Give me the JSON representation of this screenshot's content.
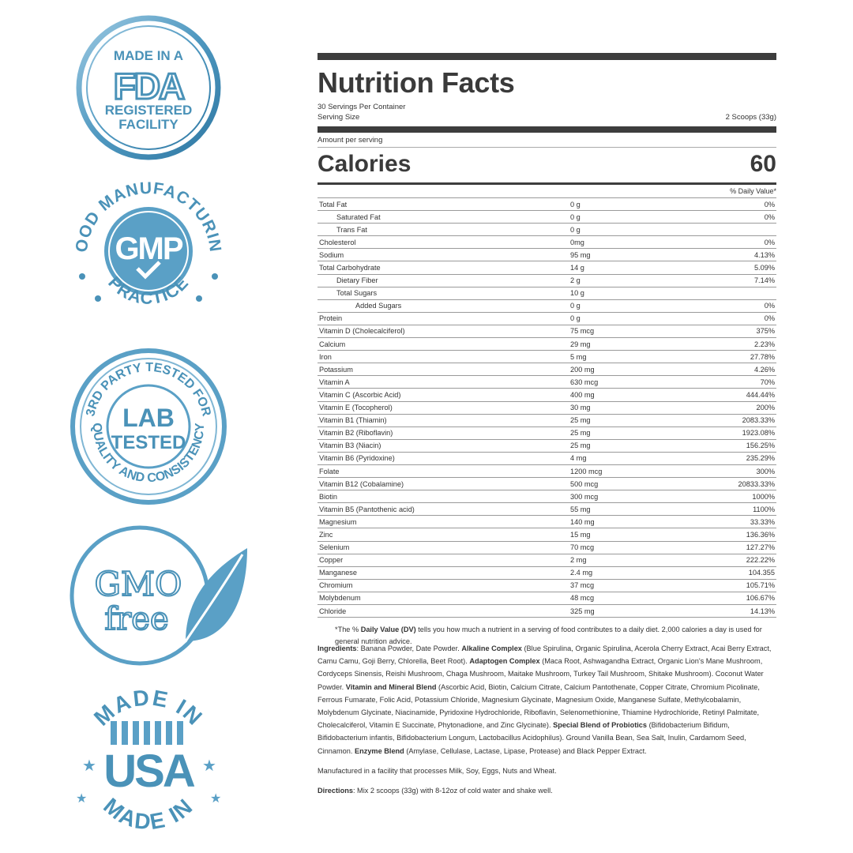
{
  "badges": {
    "fda": {
      "line1": "MADE IN A",
      "mark": "FDA",
      "line2": "REGISTERED",
      "line3": "FACILITY"
    },
    "gmp": {
      "top": "GOOD MANUFACTURING",
      "mark": "GMP",
      "bottom": "PRACTICE"
    },
    "lab": {
      "top": "3RD PARTY TESTED FOR",
      "mark1": "LAB",
      "mark2": "TESTED",
      "bottom": "QUALITY AND CONSISTENCY"
    },
    "gmo": {
      "mark1": "GMO",
      "mark2": "free"
    },
    "usa": {
      "top": "MADE IN",
      "mark": "USA",
      "bottom": "MADE IN"
    },
    "colors": {
      "blue": "#4a92b8",
      "light": "#7fb6d4"
    }
  },
  "label": {
    "title": "Nutrition Facts",
    "servings": "30 Servings Per Container",
    "serving_size_label": "Serving Size",
    "serving_size_value": "2 Scoops (33g)",
    "amount_per_serving": "Amount per serving",
    "calories_label": "Calories",
    "calories_value": "60",
    "dv_header": "% Daily Value*",
    "rows": [
      {
        "name": "Total Fat",
        "amount": "0 g",
        "dv": "0%",
        "indent": 0
      },
      {
        "name": "Saturated Fat",
        "amount": "0 g",
        "dv": "0%",
        "indent": 1
      },
      {
        "name": "Trans Fat",
        "amount": "0 g",
        "dv": "",
        "indent": 1
      },
      {
        "name": "Cholesterol",
        "amount": "0mg",
        "dv": "0%",
        "indent": 0
      },
      {
        "name": "Sodium",
        "amount": "95 mg",
        "dv": "4.13%",
        "indent": 0
      },
      {
        "name": "Total Carbohydrate",
        "amount": "14 g",
        "dv": "5.09%",
        "indent": 0
      },
      {
        "name": "Dietary Fiber",
        "amount": "2 g",
        "dv": "7.14%",
        "indent": 1
      },
      {
        "name": "Total Sugars",
        "amount": "10 g",
        "dv": "",
        "indent": 1
      },
      {
        "name": "Added Sugars",
        "amount": "0 g",
        "dv": "0%",
        "indent": 2
      },
      {
        "name": "Protein",
        "amount": "0 g",
        "dv": "0%",
        "indent": 0
      },
      {
        "name": "Vitamin D (Cholecalciferol)",
        "amount": "75 mcg",
        "dv": "375%",
        "indent": 0
      },
      {
        "name": "Calcium",
        "amount": "29 mg",
        "dv": "2.23%",
        "indent": 0
      },
      {
        "name": "Iron",
        "amount": "5 mg",
        "dv": "27.78%",
        "indent": 0
      },
      {
        "name": "Potassium",
        "amount": "200 mg",
        "dv": "4.26%",
        "indent": 0
      },
      {
        "name": "Vitamin A",
        "amount": "630 mcg",
        "dv": "70%",
        "indent": 0
      },
      {
        "name": "Vitamin C (Ascorbic Acid)",
        "amount": "400 mg",
        "dv": "444.44%",
        "indent": 0
      },
      {
        "name": "Vitamin E (Tocopherol)",
        "amount": "30 mg",
        "dv": "200%",
        "indent": 0
      },
      {
        "name": "Vitamin B1 (Thiamin)",
        "amount": "25 mg",
        "dv": "2083.33%",
        "indent": 0
      },
      {
        "name": "Vitamin B2 (Riboflavin)",
        "amount": "25 mg",
        "dv": "1923.08%",
        "indent": 0
      },
      {
        "name": "Vitamin B3 (Niacin)",
        "amount": "25 mg",
        "dv": "156.25%",
        "indent": 0
      },
      {
        "name": "Vitamin B6 (Pyridoxine)",
        "amount": "4 mg",
        "dv": "235.29%",
        "indent": 0
      },
      {
        "name": "Folate",
        "amount": "1200 mcg",
        "dv": "300%",
        "indent": 0
      },
      {
        "name": "Vitamin B12 (Cobalamine)",
        "amount": "500 mcg",
        "dv": "20833.33%",
        "indent": 0
      },
      {
        "name": "Biotin",
        "amount": "300 mcg",
        "dv": "1000%",
        "indent": 0
      },
      {
        "name": "Vitamin B5 (Pantothenic acid)",
        "amount": "55 mg",
        "dv": "1100%",
        "indent": 0
      },
      {
        "name": "Magnesium",
        "amount": "140 mg",
        "dv": "33.33%",
        "indent": 0
      },
      {
        "name": "Zinc",
        "amount": "15 mg",
        "dv": "136.36%",
        "indent": 0
      },
      {
        "name": "Selenium",
        "amount": "70 mcg",
        "dv": "127.27%",
        "indent": 0
      },
      {
        "name": "Copper",
        "amount": "2 mg",
        "dv": "222.22%",
        "indent": 0
      },
      {
        "name": "Manganese",
        "amount": "2.4 mg",
        "dv": "104.355",
        "indent": 0
      },
      {
        "name": "Chromium",
        "amount": "37 mcg",
        "dv": "105.71%",
        "indent": 0
      },
      {
        "name": "Molybdenum",
        "amount": "48 mcg",
        "dv": "106.67%",
        "indent": 0
      },
      {
        "name": "Chloride",
        "amount": "325 mg",
        "dv": "14.13%",
        "indent": 0
      }
    ],
    "footnote_pre": "*The % ",
    "footnote_bold": "Daily Value (DV)",
    "footnote_post": " tells you how much a nutrient in a serving of food contributes to a daily diet. 2,000 calories a day is used for general nutrition advice."
  },
  "ingredients": {
    "label": "Ingredients",
    "t1": ": Banana Powder, Date Powder. ",
    "b1": "Alkaline Complex",
    "t2": " (Blue Spirulina, Organic Spirulina, Acerola Cherry Extract, Acai Berry Extract, Camu Camu, Goji Berry, Chlorella, Beet Root). ",
    "b2": "Adaptogen Complex",
    "t3": " (Maca Root, Ashwagandha Extract, Organic Lion's Mane Mushroom, Cordyceps Sinensis, Reishi Mushroom, Chaga Mushroom, Maitake Mushroom, Turkey Tail Mushroom, Shitake Mushroom). Coconut Water Powder. ",
    "b3": "Vitamin and Mineral Blend",
    "t4": " (Ascorbic Acid, Biotin, Calcium Citrate, Calcium Pantothenate, Copper Citrate, Chromium Picolinate, Ferrous Fumarate, Folic Acid, Potassium Chloride, Magnesium Glycinate, Magnesium Oxide, Manganese Sulfate, Methylcobalamin, Molybdenum Glycinate, Niacinamide, Pyridoxine Hydrochloride, Riboflavin, Selenomethionine, Thiamine Hydrochloride, Retinyl Palmitate, Cholecalciferol, Vitamin E Succinate, Phytonadione, and Zinc Glycinate). ",
    "b4": "Special Blend of Probiotics",
    "t5": " (Bifidobacterium Bifidum, Bifidobacterium infantis, Bifidobacterium Longum, Lactobacillus Acidophilus). Ground Vanilla Bean, Sea Salt, Inulin, Cardamom Seed, Cinnamon. ",
    "b5": "Enzyme Blend",
    "t6": " (Amylase, Cellulase, Lactase, Lipase, Protease) and Black Pepper Extract.",
    "facility": "Manufactured in a facility that processes Milk, Soy, Eggs, Nuts and Wheat.",
    "directions_label": "Directions",
    "directions_text": ": Mix 2 scoops (33g) with 8-12oz of cold water and shake well."
  }
}
